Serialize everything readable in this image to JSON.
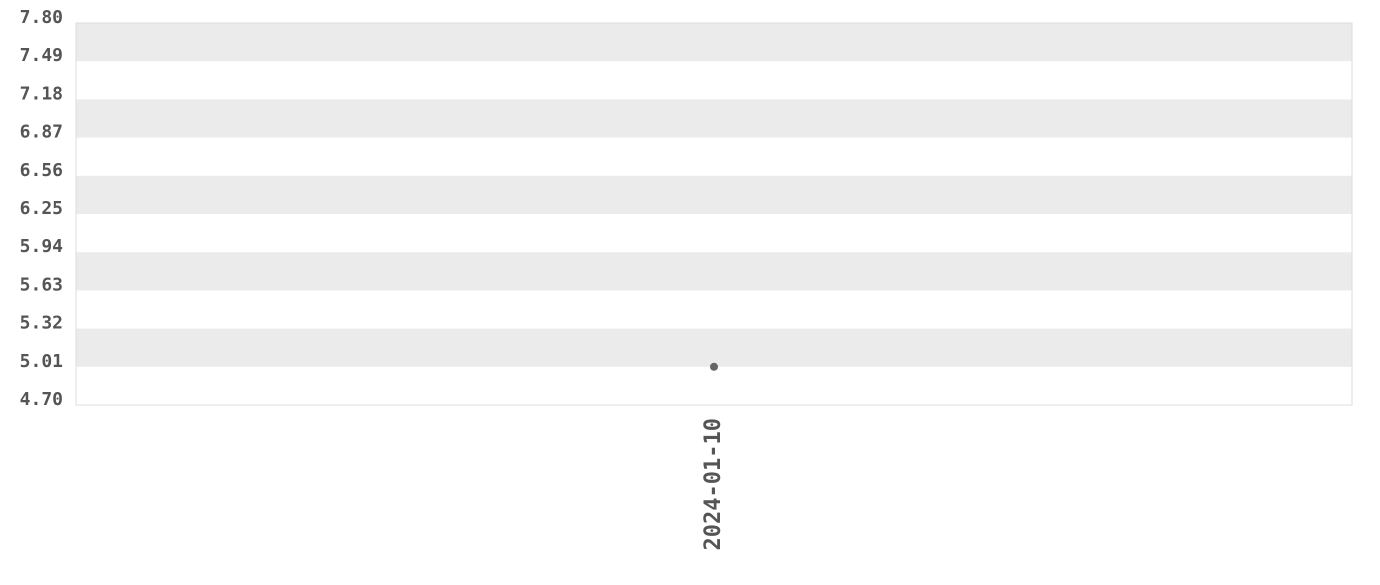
{
  "chart_data": {
    "type": "scatter",
    "title": "",
    "xlabel": "",
    "ylabel": "",
    "x": [
      "2024-01-10"
    ],
    "values": [
      5.01
    ],
    "ylim": [
      4.7,
      7.8
    ],
    "yticks": [
      "4.70",
      "5.01",
      "5.32",
      "5.63",
      "5.94",
      "6.25",
      "6.56",
      "6.87",
      "7.18",
      "7.49",
      "7.80"
    ],
    "xticks": [
      "2024-01-10"
    ],
    "grid": "alternating horizontal bands",
    "colors": {
      "band": "#ebebeb",
      "point": "#666666",
      "text": "#555555",
      "border": "#dddddd"
    }
  }
}
